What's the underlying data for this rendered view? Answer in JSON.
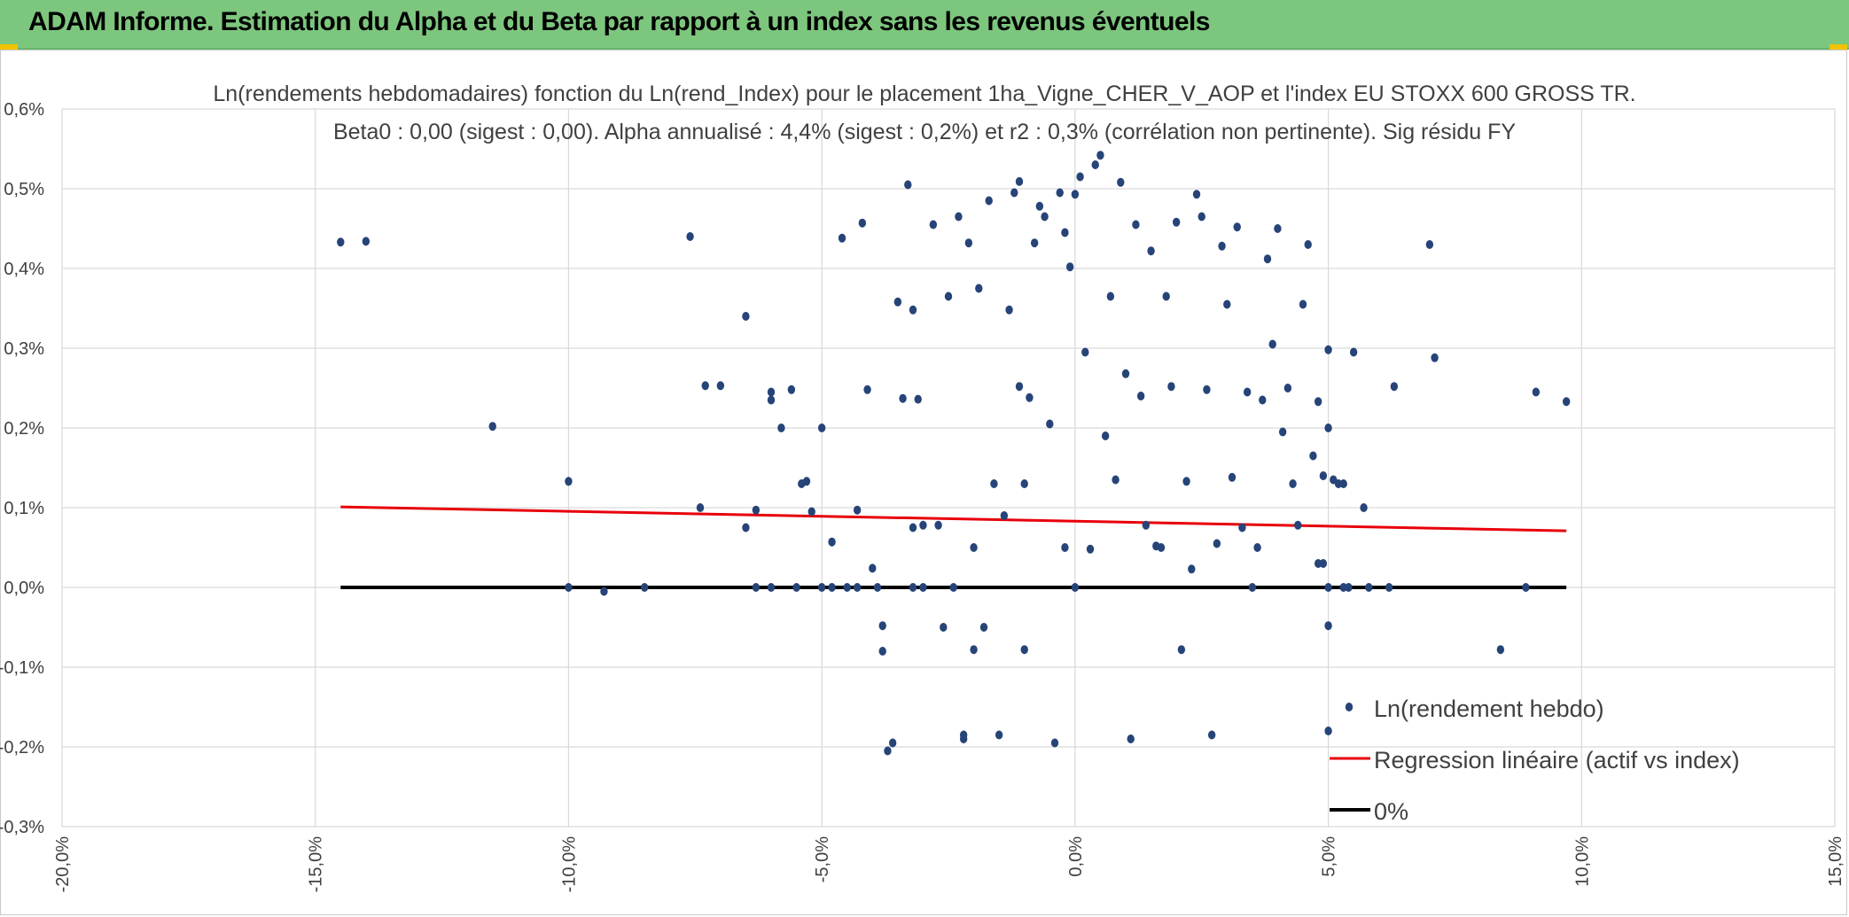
{
  "header": {
    "title": "ADAM Informe. Estimation du Alpha et du Beta par rapport à un index sans les revenus éventuels",
    "background_color": "#7dc67e"
  },
  "chart_data": {
    "type": "scatter",
    "title": "Ln(rendements hebdomadaires) fonction du Ln(rend_Index) pour le placement 1ha_Vigne_CHER_V_AOP et l'index EU STOXX 600 GROSS TR.",
    "subtitle": "Beta0 : 0,00 (sigest : 0,00). Alpha annualisé : 4,4% (sigest : 0,2%) et r2 : 0,3% (corrélation non pertinente). Sig résidu FY",
    "xlabel": "",
    "ylabel": "",
    "xlim": [
      -0.2,
      0.15
    ],
    "ylim": [
      -0.003,
      0.006
    ],
    "grid": true,
    "x_ticks": [
      -0.2,
      -0.15,
      -0.1,
      -0.05,
      0.0,
      0.05,
      0.1,
      0.15
    ],
    "x_tick_labels": [
      "-20,0%",
      "-15,0%",
      "-10,0%",
      "-5,0%",
      "0,0%",
      "5,0%",
      "10,0%",
      "15,0%"
    ],
    "y_ticks": [
      0.006,
      0.005,
      0.004,
      0.003,
      0.002,
      0.001,
      0.0,
      -0.001,
      -0.002,
      -0.003
    ],
    "y_tick_labels": [
      "0,6%",
      "0,5%",
      "0,4%",
      "0,3%",
      "0,2%",
      "0,1%",
      "0,0%",
      "-0,1%",
      "-0,2%",
      "-0,3%"
    ],
    "legend_position": "bottom-right",
    "series": [
      {
        "name": "Ln(rendement hebdo)",
        "kind": "scatter",
        "color": "#264478",
        "points": [
          [
            -0.145,
            0.00433
          ],
          [
            -0.14,
            0.00434
          ],
          [
            -0.115,
            0.00202
          ],
          [
            -0.1,
            0.00133
          ],
          [
            -0.1,
            0.0
          ],
          [
            -0.093,
            -5e-05
          ],
          [
            -0.085,
            0.0
          ],
          [
            -0.076,
            0.0044
          ],
          [
            -0.073,
            0.00253
          ],
          [
            -0.074,
            0.001
          ],
          [
            -0.07,
            0.00253
          ],
          [
            -0.065,
            0.0034
          ],
          [
            -0.065,
            0.00075
          ],
          [
            -0.063,
            0.00097
          ],
          [
            -0.063,
            0.0
          ],
          [
            -0.06,
            0.00245
          ],
          [
            -0.06,
            0.00235
          ],
          [
            -0.06,
            0.0
          ],
          [
            -0.058,
            0.002
          ],
          [
            -0.056,
            0.00248
          ],
          [
            -0.055,
            0.0
          ],
          [
            -0.054,
            0.0013
          ],
          [
            -0.053,
            0.00133
          ],
          [
            -0.052,
            0.00095
          ],
          [
            -0.05,
            0.0
          ],
          [
            -0.05,
            0.002
          ],
          [
            -0.048,
            0.00057
          ],
          [
            -0.048,
            0.0
          ],
          [
            -0.046,
            0.00438
          ],
          [
            -0.045,
            0.0
          ],
          [
            -0.043,
            0.00097
          ],
          [
            -0.043,
            0.0
          ],
          [
            -0.042,
            0.00457
          ],
          [
            -0.041,
            0.00248
          ],
          [
            -0.04,
            0.00024
          ],
          [
            -0.039,
            0.0
          ],
          [
            -0.038,
            -0.00048
          ],
          [
            -0.038,
            -0.0008
          ],
          [
            -0.037,
            -0.00205
          ],
          [
            -0.036,
            -0.00195
          ],
          [
            -0.035,
            0.00358
          ],
          [
            -0.034,
            0.00237
          ],
          [
            -0.033,
            0.00505
          ],
          [
            -0.032,
            0.00348
          ],
          [
            -0.032,
            0.00075
          ],
          [
            -0.032,
            0.0
          ],
          [
            -0.031,
            0.00236
          ],
          [
            -0.03,
            0.00078
          ],
          [
            -0.03,
            0.0
          ],
          [
            -0.028,
            0.00455
          ],
          [
            -0.027,
            0.00078
          ],
          [
            -0.026,
            -0.0005
          ],
          [
            -0.025,
            0.00365
          ],
          [
            -0.024,
            0.0
          ],
          [
            -0.023,
            0.00465
          ],
          [
            -0.022,
            -0.00185
          ],
          [
            -0.022,
            -0.0019
          ],
          [
            -0.021,
            0.00432
          ],
          [
            -0.02,
            0.0005
          ],
          [
            -0.02,
            -0.00078
          ],
          [
            -0.019,
            0.00375
          ],
          [
            -0.018,
            -0.0005
          ],
          [
            -0.017,
            0.00485
          ],
          [
            -0.016,
            0.0013
          ],
          [
            -0.015,
            -0.00185
          ],
          [
            -0.014,
            0.0009
          ],
          [
            -0.013,
            0.00348
          ],
          [
            -0.012,
            0.00495
          ],
          [
            -0.011,
            0.00509
          ],
          [
            -0.011,
            0.00252
          ],
          [
            -0.01,
            0.0013
          ],
          [
            -0.01,
            -0.00078
          ],
          [
            -0.009,
            0.00238
          ],
          [
            -0.008,
            0.00432
          ],
          [
            -0.007,
            0.00478
          ],
          [
            -0.006,
            0.00465
          ],
          [
            -0.005,
            0.00205
          ],
          [
            -0.004,
            -0.00195
          ],
          [
            -0.003,
            0.00495
          ],
          [
            -0.002,
            0.00445
          ],
          [
            -0.002,
            0.0005
          ],
          [
            -0.001,
            0.00402
          ],
          [
            0.0,
            0.00493
          ],
          [
            0.0,
            0.0
          ],
          [
            0.001,
            0.00515
          ],
          [
            0.002,
            0.00295
          ],
          [
            0.003,
            0.00048
          ],
          [
            0.004,
            0.0053
          ],
          [
            0.005,
            0.00542
          ],
          [
            0.006,
            0.0019
          ],
          [
            0.007,
            0.00365
          ],
          [
            0.008,
            0.00135
          ],
          [
            0.009,
            0.00508
          ],
          [
            0.01,
            0.00268
          ],
          [
            0.011,
            -0.0019
          ],
          [
            0.012,
            0.00455
          ],
          [
            0.013,
            0.0024
          ],
          [
            0.014,
            0.00078
          ],
          [
            0.015,
            0.00422
          ],
          [
            0.016,
            0.00052
          ],
          [
            0.017,
            0.0005
          ],
          [
            0.018,
            0.00365
          ],
          [
            0.019,
            0.00252
          ],
          [
            0.02,
            0.00458
          ],
          [
            0.021,
            -0.00078
          ],
          [
            0.022,
            0.00133
          ],
          [
            0.023,
            0.00023
          ],
          [
            0.024,
            0.00493
          ],
          [
            0.025,
            0.00465
          ],
          [
            0.026,
            0.00248
          ],
          [
            0.027,
            -0.00185
          ],
          [
            0.028,
            0.00055
          ],
          [
            0.029,
            0.00428
          ],
          [
            0.03,
            0.00355
          ],
          [
            0.031,
            0.00138
          ],
          [
            0.032,
            0.00452
          ],
          [
            0.033,
            0.00075
          ],
          [
            0.034,
            0.00245
          ],
          [
            0.035,
            0.0
          ],
          [
            0.036,
            0.0005
          ],
          [
            0.037,
            0.00235
          ],
          [
            0.038,
            0.00412
          ],
          [
            0.039,
            0.00305
          ],
          [
            0.04,
            0.0045
          ],
          [
            0.041,
            0.00195
          ],
          [
            0.042,
            0.0025
          ],
          [
            0.043,
            0.0013
          ],
          [
            0.044,
            0.00078
          ],
          [
            0.045,
            0.00355
          ],
          [
            0.046,
            0.0043
          ],
          [
            0.047,
            0.00165
          ],
          [
            0.048,
            0.00233
          ],
          [
            0.049,
            0.0014
          ],
          [
            0.05,
            -0.00048
          ],
          [
            0.05,
            0.0
          ],
          [
            0.051,
            0.00135
          ],
          [
            0.052,
            0.0013
          ],
          [
            0.053,
            0.0
          ],
          [
            0.054,
            0.0
          ],
          [
            0.049,
            0.0003
          ],
          [
            0.048,
            0.0003
          ],
          [
            0.05,
            0.002
          ],
          [
            0.05,
            0.00298
          ],
          [
            0.05,
            -0.0018
          ],
          [
            0.053,
            0.0013
          ],
          [
            0.055,
            0.00295
          ],
          [
            0.057,
            0.001
          ],
          [
            0.058,
            0.0
          ],
          [
            0.062,
            0.0
          ],
          [
            0.063,
            0.00252
          ],
          [
            0.07,
            0.0043
          ],
          [
            0.071,
            0.00288
          ],
          [
            0.084,
            -0.00078
          ],
          [
            0.089,
            0.0
          ],
          [
            0.091,
            0.00245
          ],
          [
            0.097,
            0.00233
          ]
        ]
      },
      {
        "name": "Regression linéaire (actif vs index)",
        "kind": "line",
        "color": "#e8000b",
        "points": [
          [
            -0.145,
            0.00101
          ],
          [
            0.097,
            0.00071
          ]
        ]
      },
      {
        "name": "0%",
        "kind": "line",
        "color": "#000000",
        "points": [
          [
            -0.145,
            0.0
          ],
          [
            0.097,
            0.0
          ]
        ]
      }
    ]
  }
}
